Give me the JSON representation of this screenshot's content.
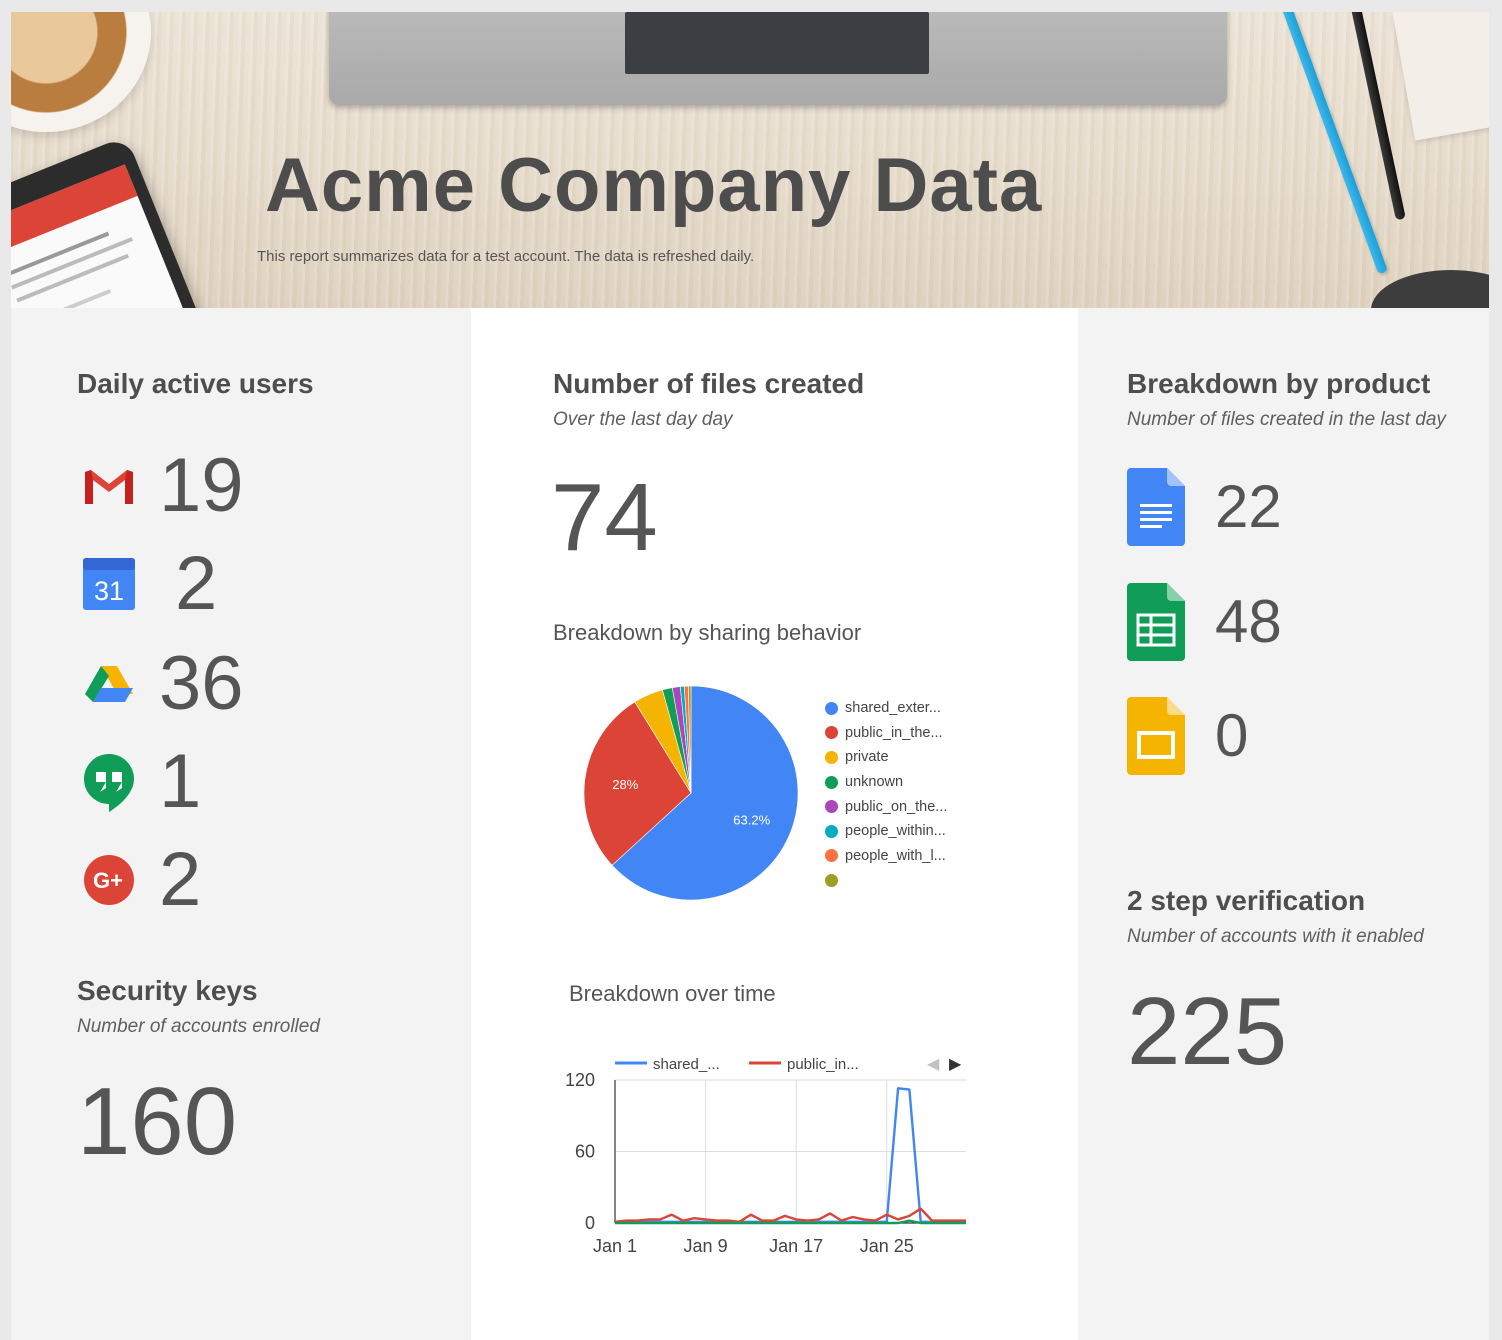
{
  "header": {
    "title": "Acme Company Data",
    "subtitle": "This report summarizes data for a test account. The data is refreshed daily."
  },
  "daily_active_users": {
    "title": "Daily active users",
    "items": [
      {
        "product": "gmail",
        "icon": "gmail-icon",
        "value": "19"
      },
      {
        "product": "calendar",
        "icon": "calendar-icon",
        "icon_text": "31",
        "value": "2"
      },
      {
        "product": "drive",
        "icon": "drive-icon",
        "value": "36"
      },
      {
        "product": "hangouts",
        "icon": "hangouts-icon",
        "value": "1"
      },
      {
        "product": "google-plus",
        "icon": "google-plus-icon",
        "icon_text": "G+",
        "value": "2"
      }
    ]
  },
  "security_keys": {
    "title": "Security keys",
    "subtitle": "Number of accounts enrolled",
    "value": "160"
  },
  "files_created": {
    "title": "Number of files created",
    "subtitle": "Over the last day day",
    "value": "74"
  },
  "sharing_chart": {
    "title": "Breakdown by sharing behavior"
  },
  "time_chart": {
    "title": "Breakdown over time",
    "legend": [
      "shared_...",
      "public_in..."
    ],
    "pager": {
      "prev": "◀",
      "next": "▶"
    }
  },
  "breakdown_by_product": {
    "title": "Breakdown by product",
    "subtitle": "Number of files created in the last day",
    "items": [
      {
        "product": "docs",
        "icon": "docs-icon",
        "value": "22"
      },
      {
        "product": "sheets",
        "icon": "sheets-icon",
        "value": "48"
      },
      {
        "product": "slides",
        "icon": "slides-icon",
        "value": "0"
      }
    ]
  },
  "two_step": {
    "title": "2 step verification",
    "subtitle": "Number of accounts with it enabled",
    "value": "225"
  },
  "chart_data": [
    {
      "type": "pie",
      "title": "Breakdown by sharing behavior",
      "slices": [
        {
          "label": "shared_exter...",
          "value": 63.2,
          "color": "#4285f4",
          "data_label": "63.2%"
        },
        {
          "label": "public_in_the...",
          "value": 28,
          "color": "#db4437",
          "data_label": "28%"
        },
        {
          "label": "private",
          "value": 4.5,
          "color": "#f4b400"
        },
        {
          "label": "unknown",
          "value": 1.5,
          "color": "#0f9d58"
        },
        {
          "label": "public_on_the...",
          "value": 1.2,
          "color": "#ab47bc"
        },
        {
          "label": "people_within...",
          "value": 0.6,
          "color": "#00acc1"
        },
        {
          "label": "people_with_l...",
          "value": 0.6,
          "color": "#ff7043"
        },
        {
          "label": "",
          "value": 0.4,
          "color": "#9e9d24"
        }
      ]
    },
    {
      "type": "line",
      "title": "Breakdown over time",
      "xlabel": "",
      "ylabel": "",
      "ylim": [
        0,
        120
      ],
      "yticks": [
        "0",
        "60",
        "120"
      ],
      "xticks": [
        {
          "label": "Jan 1",
          "day": 1
        },
        {
          "label": "Jan 9",
          "day": 9
        },
        {
          "label": "Jan 17",
          "day": 17
        },
        {
          "label": "Jan 25",
          "day": 25
        }
      ],
      "xrange": [
        1,
        32
      ],
      "series": [
        {
          "name": "shared_...",
          "color": "#4285f4",
          "x": [
            1,
            2,
            3,
            4,
            5,
            6,
            7,
            8,
            9,
            10,
            11,
            12,
            13,
            14,
            15,
            16,
            17,
            18,
            19,
            20,
            21,
            22,
            23,
            24,
            25,
            26,
            27,
            28,
            29,
            30,
            31,
            32
          ],
          "values": [
            1,
            1,
            1,
            1,
            1,
            1,
            1,
            1,
            1,
            1,
            1,
            1,
            1,
            1,
            1,
            1,
            1,
            1,
            1,
            1,
            1,
            1,
            1,
            1,
            1,
            113,
            112,
            1,
            1,
            1,
            1,
            1
          ]
        },
        {
          "name": "public_in...",
          "color": "#db4437",
          "x": [
            1,
            2,
            3,
            4,
            5,
            6,
            7,
            8,
            9,
            10,
            11,
            12,
            13,
            14,
            15,
            16,
            17,
            18,
            19,
            20,
            21,
            22,
            23,
            24,
            25,
            26,
            27,
            28,
            29,
            30,
            31,
            32
          ],
          "values": [
            1,
            2,
            2,
            3,
            3,
            7,
            2,
            4,
            3,
            2,
            2,
            1,
            7,
            2,
            2,
            6,
            3,
            2,
            3,
            8,
            2,
            5,
            3,
            2,
            7,
            3,
            6,
            12,
            2,
            2,
            2,
            2
          ]
        },
        {
          "name": "",
          "color": "#0f9d58",
          "x": [
            1,
            2,
            3,
            4,
            5,
            6,
            7,
            8,
            9,
            10,
            11,
            12,
            13,
            14,
            15,
            16,
            17,
            18,
            19,
            20,
            21,
            22,
            23,
            24,
            25,
            26,
            27,
            28,
            29,
            30,
            31,
            32
          ],
          "values": [
            0,
            0,
            0,
            0,
            0,
            0,
            0,
            0,
            0,
            0,
            0,
            0,
            0,
            0,
            0,
            0,
            0,
            0,
            0,
            0,
            0,
            0,
            0,
            0,
            0,
            0,
            2,
            0,
            0,
            0,
            0,
            0
          ]
        }
      ]
    }
  ]
}
